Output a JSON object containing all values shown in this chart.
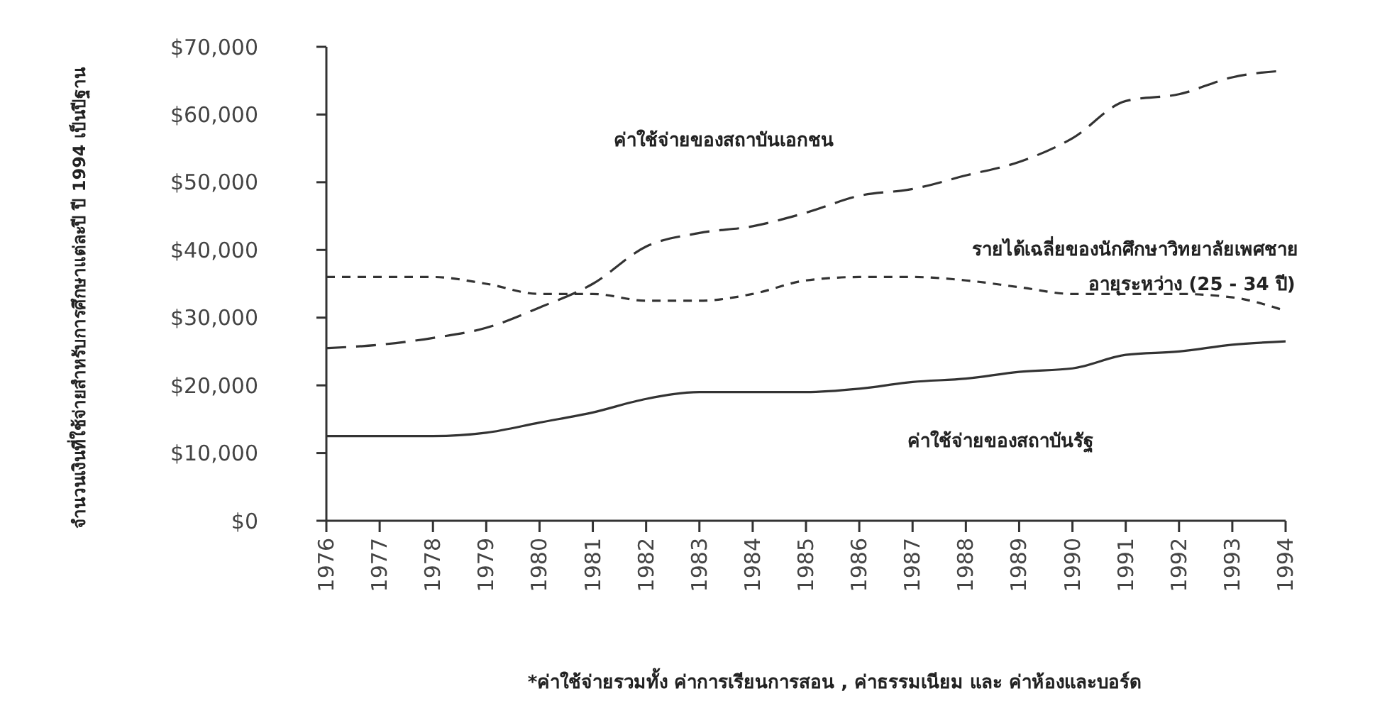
{
  "chart_data": {
    "type": "line",
    "ylabel": "จำนวนเงินที่ใช้จ่ายสำหรับการศึกษาแต่ละปี ปี 1994 เป็นปีฐาน",
    "categories": [
      "1976",
      "1977",
      "1978",
      "1979",
      "1980",
      "1981",
      "1982",
      "1983",
      "1984",
      "1985",
      "1986",
      "1987",
      "1988",
      "1989",
      "1990",
      "1991",
      "1992",
      "1993",
      "1994"
    ],
    "ylim": [
      0,
      70000
    ],
    "yticks": [
      {
        "value": 0,
        "label": "$0"
      },
      {
        "value": 10000,
        "label": "$10,000"
      },
      {
        "value": 20000,
        "label": "$20,000"
      },
      {
        "value": 30000,
        "label": "$30,000"
      },
      {
        "value": 40000,
        "label": "$40,000"
      },
      {
        "value": 50000,
        "label": "$50,000"
      },
      {
        "value": 60000,
        "label": "$60,000"
      },
      {
        "value": 70000,
        "label": "$70,000"
      }
    ],
    "grid": false,
    "series": [
      {
        "name": "ค่าใช้จ่ายของสถาบันเอกชน",
        "color": "#333333",
        "line_style": "dashed",
        "values": [
          25500,
          26000,
          27000,
          28500,
          31500,
          35000,
          40500,
          42500,
          43500,
          45500,
          48000,
          49000,
          51000,
          53000,
          56500,
          62000,
          63000,
          65500,
          66500
        ]
      },
      {
        "name": "รายได้เฉลี่ยของนักศึกษาวิทยาลัยเพศชาย\nอายุระหว่าง (25 - 34 ปี)",
        "color": "#333333",
        "line_style": "dotted",
        "values": [
          36000,
          36000,
          36000,
          35000,
          33500,
          33500,
          32500,
          32500,
          33500,
          35500,
          36000,
          36000,
          35500,
          34500,
          33500,
          33500,
          33500,
          33000,
          31000
        ]
      },
      {
        "name": "ค่าใช้จ่ายของสถาบันรัฐ",
        "color": "#333333",
        "line_style": "solid",
        "values": [
          12500,
          12500,
          12500,
          13000,
          14500,
          16000,
          18000,
          19000,
          19000,
          19000,
          19500,
          20500,
          21000,
          22000,
          22500,
          24500,
          25000,
          26000,
          26500
        ]
      }
    ],
    "annotations": [
      "*ค่าใช้จ่ายรวมทั้ง ค่าการเรียนการสอน , ค่าธรรมเนียม และ ค่าห้องและบอร์ด"
    ]
  }
}
